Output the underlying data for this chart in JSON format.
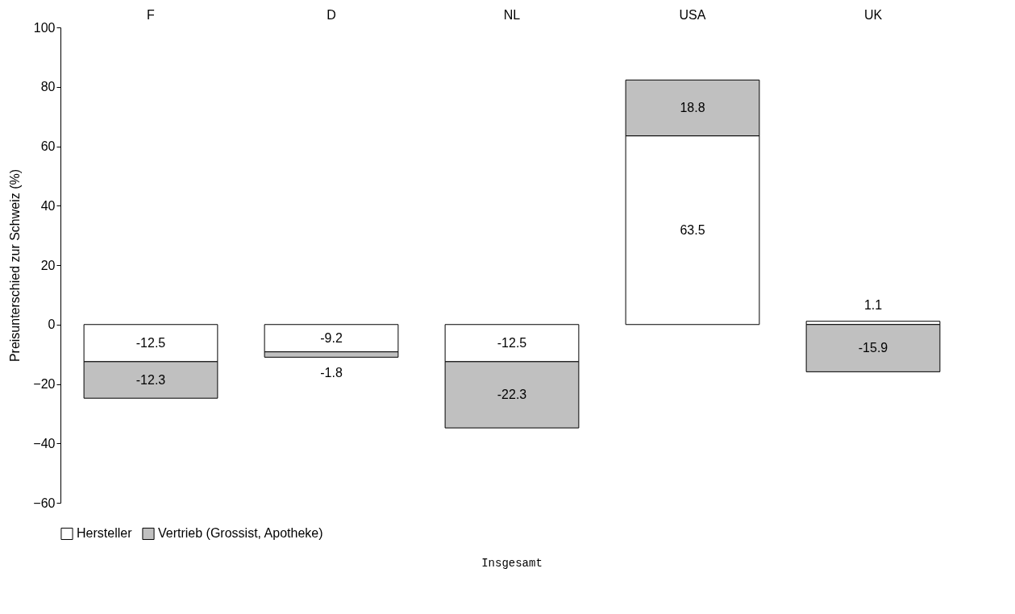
{
  "chart_data": {
    "type": "bar",
    "stacked": true,
    "ylabel": "Preisunterschied zur Schweiz (%)",
    "categories": [
      "F",
      "D",
      "NL",
      "USA",
      "UK"
    ],
    "series": [
      {
        "name": "Hersteller",
        "color": "#ffffff",
        "values": [
          -12.5,
          -9.2,
          -12.5,
          63.5,
          1.1
        ]
      },
      {
        "name": "Vertrieb (Grossist, Apotheke)",
        "color": "#c0c0c0",
        "values": [
          -12.3,
          -1.8,
          -22.3,
          18.8,
          -15.9
        ]
      }
    ],
    "ylim": [
      -60,
      100
    ],
    "yticks": [
      -60,
      -40,
      -20,
      0,
      20,
      40,
      60,
      80,
      100
    ],
    "data_labels": true,
    "legend": "bottom",
    "grid": false,
    "annotations": [
      "Insgesamt"
    ]
  }
}
